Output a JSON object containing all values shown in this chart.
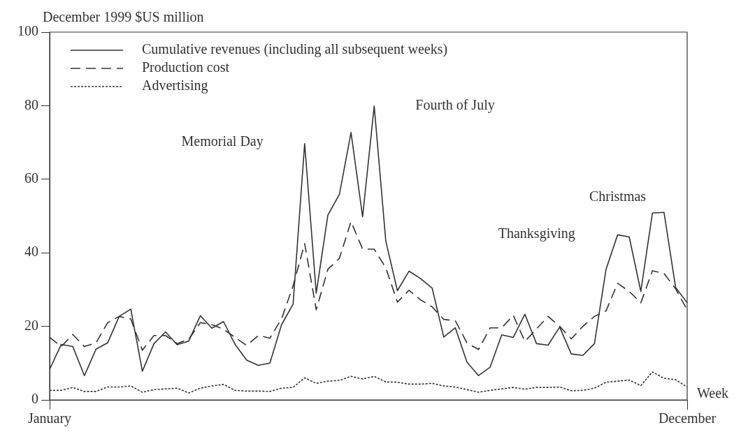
{
  "chart_data": {
    "type": "line",
    "ylabel": "December 1999 $US million",
    "xlabel": "Week",
    "categories": [
      "January",
      null,
      null,
      null,
      null,
      null,
      null,
      null,
      null,
      null,
      null,
      null,
      null,
      null,
      null,
      null,
      null,
      null,
      null,
      null,
      null,
      null,
      null,
      null,
      null,
      null,
      null,
      null,
      null,
      null,
      null,
      null,
      null,
      null,
      null,
      null,
      null,
      null,
      null,
      null,
      null,
      null,
      null,
      null,
      null,
      null,
      null,
      null,
      null,
      null,
      null,
      null,
      null,
      null,
      null,
      "December"
    ],
    "ylim": [
      0,
      100
    ],
    "yticks": [
      0,
      20,
      40,
      60,
      80,
      100
    ],
    "grid": false,
    "legend": "top left",
    "marker": "none",
    "series": [
      {
        "name": "Cumulative revenues (including all subsequent weeks)",
        "color": "#333333",
        "line_style": "solid",
        "values": [
          8.3,
          15.1,
          14.5,
          6.6,
          13.8,
          15.5,
          22.7,
          24.7,
          7.8,
          15.3,
          18.5,
          15,
          16,
          22.9,
          19.5,
          21.3,
          15.1,
          10.8,
          9.4,
          10,
          20.4,
          26,
          69.7,
          29,
          50.2,
          55.9,
          72.7,
          49.8,
          79.9,
          43.2,
          29.7,
          35,
          33,
          30.4,
          17.1,
          19.6,
          10.3,
          6.6,
          8.9,
          17.7,
          17,
          23.3,
          15.3,
          14.9,
          19.8,
          12.5,
          12.1,
          15.3,
          35.5,
          44.9,
          44.3,
          29.5,
          50.8,
          51,
          30.6,
          26.4
        ]
      },
      {
        "name": "Production cost",
        "color": "#333333",
        "line_style": "dashed",
        "values": [
          17,
          14.5,
          17.8,
          14.5,
          15.5,
          21,
          22.7,
          22,
          13.5,
          17.5,
          17.5,
          15.3,
          16.5,
          21,
          20.5,
          19.2,
          17,
          14.8,
          17.5,
          16.8,
          22,
          31,
          42.5,
          24.5,
          35.5,
          38.5,
          48.5,
          41,
          41,
          35.9,
          26.6,
          29.8,
          27.2,
          25.3,
          21.9,
          21.5,
          15.5,
          13.7,
          19.6,
          19.6,
          23,
          15.9,
          19.3,
          22.7,
          20,
          16.6,
          20,
          22.7,
          24.2,
          31.7,
          29.5,
          26.4,
          35.1,
          34.4,
          30.2,
          24.5
        ]
      },
      {
        "name": "Advertising",
        "color": "#333333",
        "line_style": "dotted",
        "values": [
          2.6,
          2.6,
          3.4,
          2.3,
          2.3,
          3.5,
          3.5,
          3.8,
          2.1,
          2.8,
          3,
          3.2,
          1.9,
          3.2,
          3.8,
          4.2,
          2.6,
          2.4,
          2.4,
          2.3,
          3.2,
          3.4,
          6,
          4.5,
          5.1,
          5.3,
          6.4,
          5.7,
          6.4,
          4.9,
          4.8,
          4.3,
          4.3,
          4.5,
          3.8,
          3.5,
          2.8,
          2.1,
          2.6,
          3,
          3.4,
          2.9,
          3.4,
          3.4,
          3.5,
          2.5,
          2.6,
          3.2,
          4.8,
          5.1,
          5.4,
          3.9,
          7.6,
          5.9,
          5.5,
          3.5
        ]
      }
    ],
    "annotations": [
      "Memorial Day",
      "Fourth of July",
      "Thanksgiving",
      "Christmas"
    ]
  }
}
